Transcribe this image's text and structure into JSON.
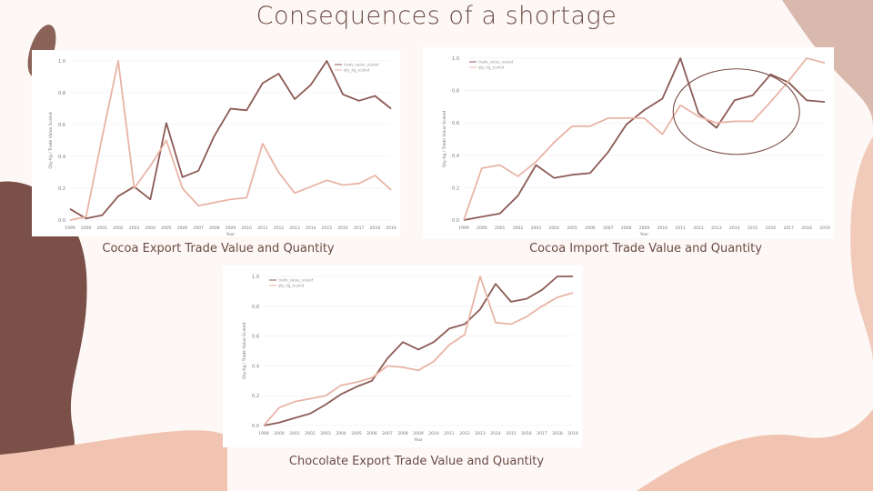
{
  "slide": {
    "title": "Consequences of a shortage"
  },
  "captions": {
    "cocoa_export": "Cocoa Export Trade Value and Quantity",
    "cocoa_import": "Cocoa Import Trade Value and Quantity",
    "chocolate_export": "Chocolate Export Trade Value and Quantity"
  },
  "colors": {
    "value": "#8c5a55",
    "quantity": "#e8b4a6",
    "accent": "#7a5048"
  },
  "chart_data": [
    {
      "id": "cocoa_export",
      "type": "line",
      "xlabel": "Year",
      "ylabel": "Qty-Kg / Trade Value Scaled",
      "ylim": [
        0,
        1
      ],
      "yticks": [
        "0.0",
        "0.2",
        "0.4",
        "0.6",
        "0.8",
        "1.0"
      ],
      "x": [
        "1999",
        "2000",
        "2001",
        "2002",
        "2003",
        "2004",
        "2005",
        "2006",
        "2007",
        "2008",
        "2009",
        "2010",
        "2011",
        "2012",
        "2013",
        "2014",
        "2015",
        "2016",
        "2017",
        "2018",
        "2019"
      ],
      "series": [
        {
          "name": "trade_value_scaled",
          "values": [
            0.07,
            0.01,
            0.03,
            0.15,
            0.21,
            0.13,
            0.61,
            0.27,
            0.31,
            0.53,
            0.7,
            0.69,
            0.86,
            0.92,
            0.76,
            0.85,
            1.0,
            0.79,
            0.75,
            0.78,
            0.7
          ]
        },
        {
          "name": "qty_kg_scaled",
          "values": [
            0.0,
            0.02,
            0.52,
            1.0,
            0.2,
            0.34,
            0.5,
            0.2,
            0.09,
            0.11,
            0.13,
            0.14,
            0.48,
            0.3,
            0.17,
            0.21,
            0.25,
            0.22,
            0.23,
            0.28,
            0.19
          ]
        }
      ],
      "legend": "top-right"
    },
    {
      "id": "cocoa_import",
      "type": "line",
      "xlabel": "Year",
      "ylabel": "Qty-Kg / Trade Value Scaled",
      "ylim": [
        0,
        1
      ],
      "yticks": [
        "0.0",
        "0.2",
        "0.4",
        "0.6",
        "0.8",
        "1.0"
      ],
      "x": [
        "1999",
        "2000",
        "2001",
        "2002",
        "2003",
        "2004",
        "2005",
        "2006",
        "2007",
        "2008",
        "2009",
        "2010",
        "2011",
        "2012",
        "2013",
        "2014",
        "2015",
        "2016",
        "2017",
        "2018",
        "2019"
      ],
      "series": [
        {
          "name": "trade_value_scaled",
          "values": [
            0.0,
            0.02,
            0.04,
            0.15,
            0.34,
            0.26,
            0.28,
            0.29,
            0.42,
            0.59,
            0.68,
            0.75,
            1.0,
            0.66,
            0.57,
            0.74,
            0.77,
            0.9,
            0.85,
            0.74,
            0.73
          ]
        },
        {
          "name": "qty_kg_scaled",
          "values": [
            0.0,
            0.32,
            0.34,
            0.27,
            0.36,
            0.48,
            0.58,
            0.58,
            0.63,
            0.63,
            0.63,
            0.53,
            0.71,
            0.64,
            0.6,
            0.61,
            0.61,
            0.73,
            0.86,
            1.0,
            0.97
          ]
        }
      ],
      "legend": "top-left",
      "annotation": "ellipse around 2011-2018"
    },
    {
      "id": "chocolate_export",
      "type": "line",
      "xlabel": "Year",
      "ylabel": "Qty-Kg / Trade Value Scaled",
      "ylim": [
        0,
        1
      ],
      "yticks": [
        "0.0",
        "0.2",
        "0.4",
        "0.6",
        "0.8",
        "1.0"
      ],
      "x": [
        "1999",
        "2000",
        "2001",
        "2002",
        "2003",
        "2004",
        "2005",
        "2006",
        "2007",
        "2008",
        "2009",
        "2010",
        "2011",
        "2012",
        "2013",
        "2014",
        "2015",
        "2016",
        "2017",
        "2018",
        "2019"
      ],
      "series": [
        {
          "name": "trade_value_scaled",
          "values": [
            0.0,
            0.02,
            0.05,
            0.08,
            0.14,
            0.21,
            0.26,
            0.3,
            0.45,
            0.56,
            0.51,
            0.56,
            0.65,
            0.68,
            0.78,
            0.95,
            0.83,
            0.85,
            0.91,
            1.0,
            1.0
          ]
        },
        {
          "name": "qty_kg_scaled",
          "values": [
            0.0,
            0.12,
            0.16,
            0.18,
            0.2,
            0.27,
            0.29,
            0.32,
            0.4,
            0.39,
            0.37,
            0.43,
            0.54,
            0.61,
            1.0,
            0.69,
            0.68,
            0.73,
            0.8,
            0.86,
            0.89
          ]
        }
      ],
      "legend": "top-left"
    }
  ]
}
